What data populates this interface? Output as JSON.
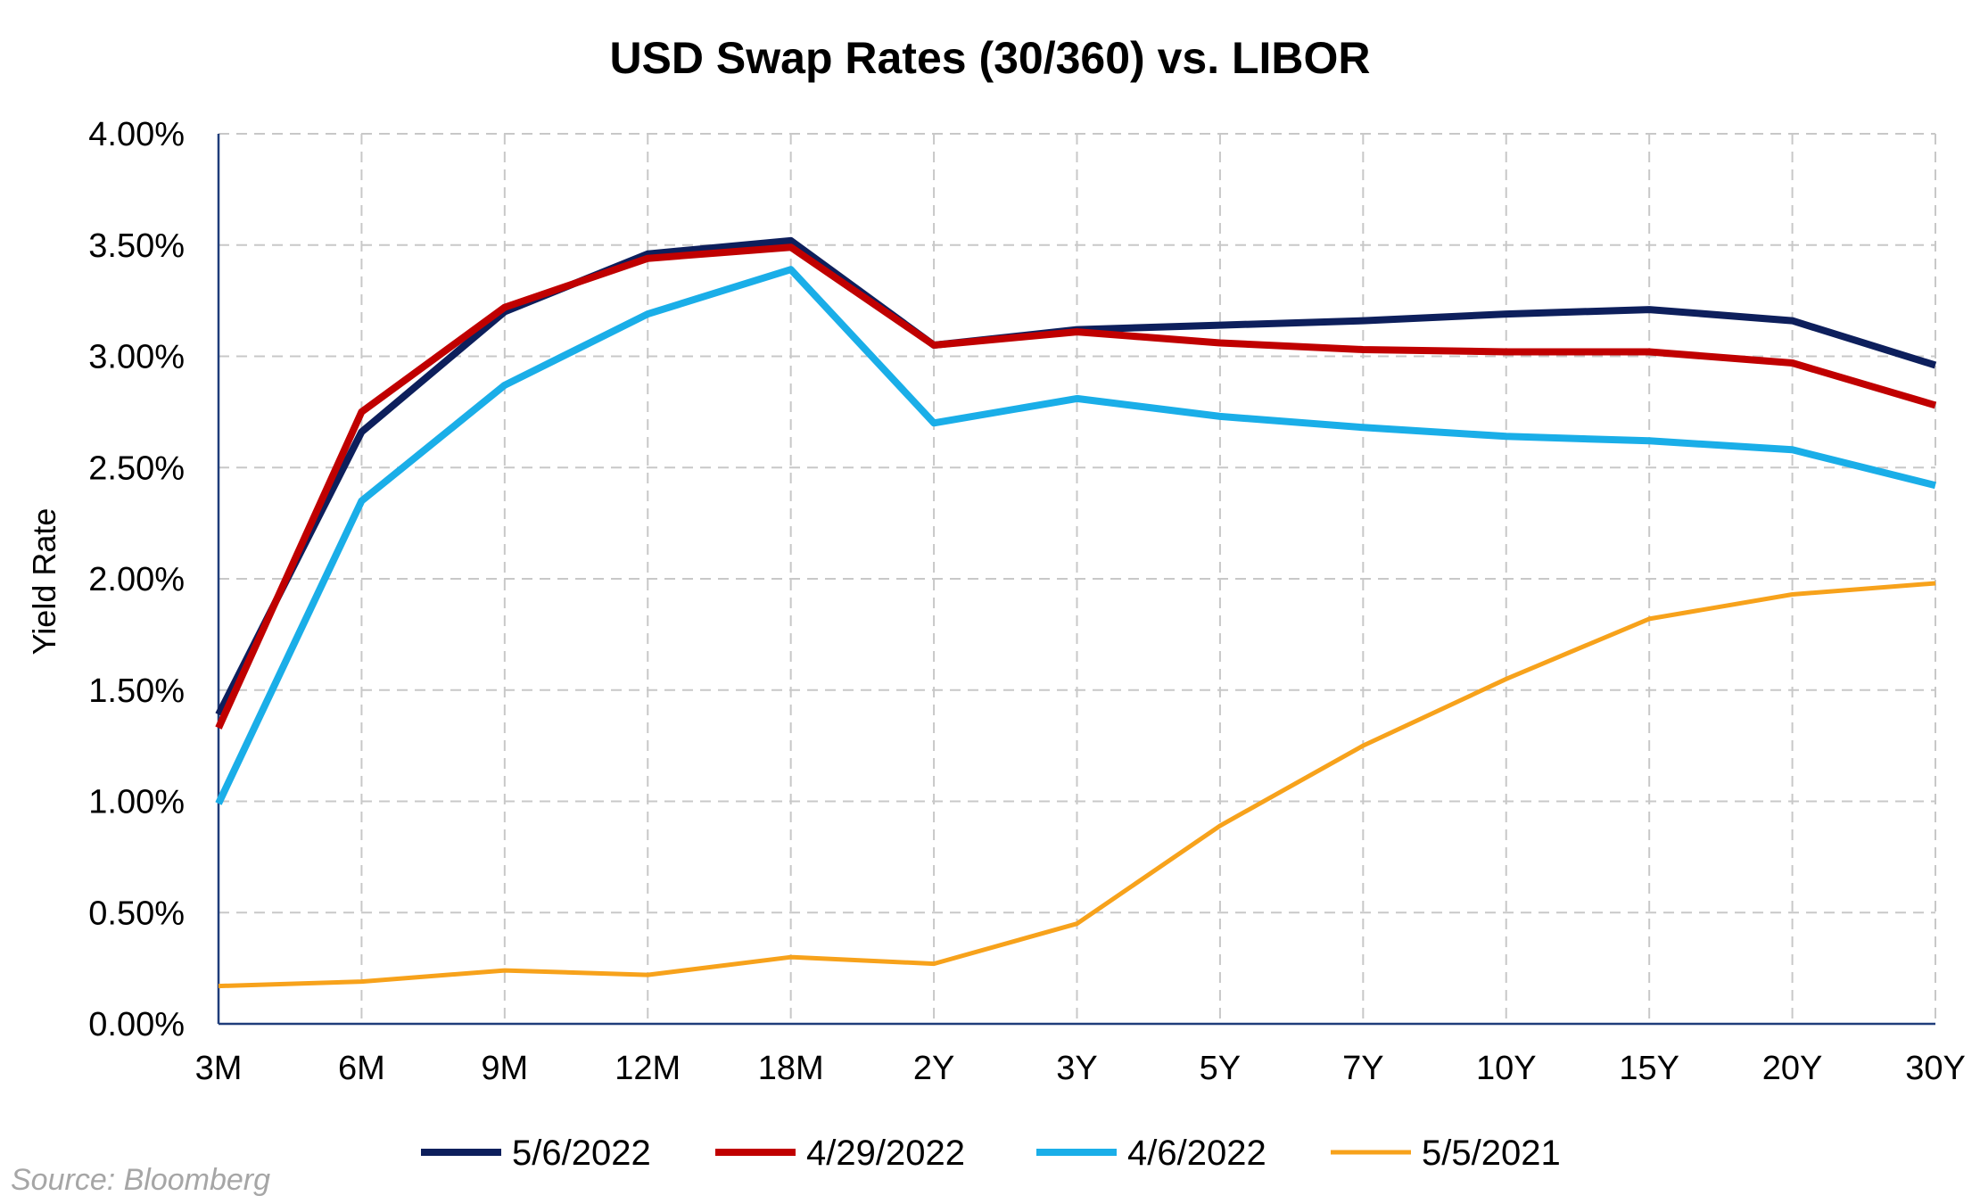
{
  "source": "Source: Bloomberg",
  "chart_data": {
    "type": "line",
    "title": "USD Swap Rates (30/360) vs. LIBOR",
    "xlabel": "",
    "ylabel": "Yield Rate",
    "ylim": [
      0,
      4
    ],
    "yticks": [
      "0.00%",
      "0.50%",
      "1.00%",
      "1.50%",
      "2.00%",
      "2.50%",
      "3.00%",
      "3.50%",
      "4.00%"
    ],
    "categories": [
      "3M",
      "6M",
      "9M",
      "12M",
      "18M",
      "2Y",
      "3Y",
      "5Y",
      "7Y",
      "10Y",
      "15Y",
      "20Y",
      "30Y"
    ],
    "grid": true,
    "legend_position": "bottom",
    "series": [
      {
        "name": "5/6/2022",
        "color": "#0d1f5c",
        "stroke": "thick",
        "values": [
          1.39,
          2.66,
          3.2,
          3.46,
          3.52,
          3.05,
          3.12,
          3.14,
          3.16,
          3.19,
          3.21,
          3.16,
          2.96
        ]
      },
      {
        "name": "4/29/2022",
        "color": "#c00000",
        "stroke": "thick",
        "values": [
          1.33,
          2.75,
          3.22,
          3.44,
          3.49,
          3.05,
          3.11,
          3.06,
          3.03,
          3.02,
          3.02,
          2.97,
          2.78
        ]
      },
      {
        "name": "4/6/2022",
        "color": "#1aaee8",
        "stroke": "thick",
        "values": [
          0.99,
          2.35,
          2.87,
          3.19,
          3.39,
          2.7,
          2.81,
          2.73,
          2.68,
          2.64,
          2.62,
          2.58,
          2.42
        ]
      },
      {
        "name": "5/5/2021",
        "color": "#f7a21b",
        "stroke": "thin",
        "values": [
          0.17,
          0.19,
          0.24,
          0.22,
          0.3,
          0.27,
          0.45,
          0.89,
          1.25,
          1.55,
          1.82,
          1.93,
          1.98
        ]
      }
    ]
  }
}
